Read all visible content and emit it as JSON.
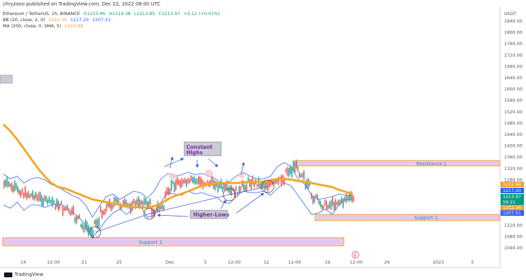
{
  "header": {
    "published_text": "chryzano published on TradingView.com, Dec 22, 2022 08:00 UTC",
    "currency": "USDT"
  },
  "legend": {
    "symbol_line": {
      "name": "Ethereum / TetherUS, 1h, BINANCE",
      "o": "O1213.86",
      "h": "H1214.38",
      "l": "L1213.85",
      "c": "C1213.97",
      "change": "+0.11 (+0.01%)"
    },
    "bb_line": {
      "name": "BB (20, close, 2, 0)",
      "v1": "1212.36",
      "v2": "1217.20",
      "v3": "1207.51"
    },
    "ma_line": {
      "name": "MA (200, close, 0, SMA, 5)",
      "v1": "1222.88"
    }
  },
  "annotations": {
    "constant_highs": "Constant\nHighs",
    "higher_lows": "Higher-Lows",
    "resistance": "Resistance 1",
    "support1": "Support 1",
    "support2": "Support 2"
  },
  "price_axis": {
    "ticks": [
      "1840.00",
      "1800.00",
      "1760.00",
      "1720.00",
      "1680.00",
      "1640.00",
      "1600.00",
      "1560.00",
      "1520.00",
      "1480.00",
      "1440.00",
      "1400.00",
      "1360.00",
      "1320.00",
      "1280.00",
      "1240.00",
      "1200.00",
      "1160.00",
      "1120.00",
      "1080.00",
      "1040.00"
    ],
    "badges": [
      {
        "text": "1222.88",
        "color": "#f0a030"
      },
      {
        "text": "1217.20",
        "color": "#2962ff"
      },
      {
        "text": "1213.97",
        "color": "#089981"
      },
      {
        "text": "59:21",
        "color": "#089981"
      },
      {
        "text": "1212.36",
        "color": "#f0a030"
      },
      {
        "text": "1207.51",
        "color": "#2962ff"
      }
    ]
  },
  "time_axis": {
    "labels": [
      "14",
      "12:00",
      "21",
      "25",
      "Dec",
      "5",
      "12:00",
      "12",
      "12:00",
      "19",
      "12:00",
      "26",
      "2023",
      "5"
    ]
  },
  "footer": {
    "brand": "TradingView"
  },
  "colors": {
    "ma": "#f5a623",
    "bb": "#2962ff",
    "up": "#26a69a",
    "down": "#ef5350",
    "zone_fill": "#e6c8ec",
    "zone_border": "#f5a623",
    "zone_text": "#2e86de",
    "annotation_arrow": "#3b5bdb"
  }
}
